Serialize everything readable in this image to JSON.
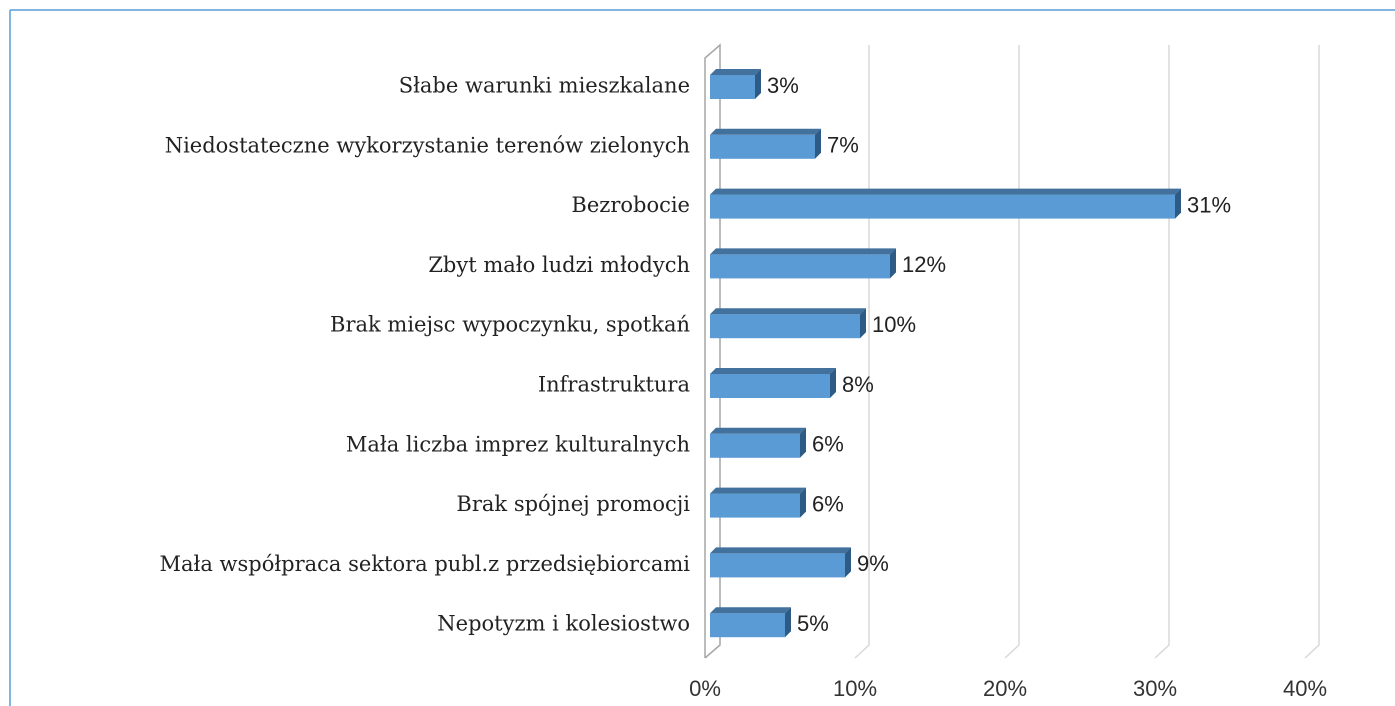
{
  "chart_data": {
    "type": "bar",
    "orientation": "horizontal",
    "categories": [
      "Słabe warunki mieszkalane",
      "Niedostateczne wykorzystanie terenów zielonych ",
      "Bezrobocie",
      "Zbyt mało ludzi młodych",
      "Brak miejsc wypoczynku, spotkań",
      "Infrastruktura",
      "Mała liczba imprez kulturalnych",
      "Brak spójnej promocji ",
      "Mała współpraca sektora publ.z przedsiębiorcami",
      "Nepotyzm i kolesiostwo"
    ],
    "values": [
      3,
      7,
      31,
      12,
      10,
      8,
      6,
      6,
      9,
      5
    ],
    "value_labels": [
      "3%",
      "7%",
      "31%",
      "12%",
      "10%",
      "8%",
      "6%",
      "6%",
      "9%",
      "5%"
    ],
    "color": "#5b9bd5",
    "xlim": [
      0,
      40
    ],
    "xticks": [
      {
        "value": 0,
        "label": "0%"
      },
      {
        "value": 10,
        "label": "10%"
      },
      {
        "value": 20,
        "label": "20%"
      },
      {
        "value": 30,
        "label": "30%"
      },
      {
        "value": 40,
        "label": "40%"
      }
    ],
    "grid": true
  }
}
